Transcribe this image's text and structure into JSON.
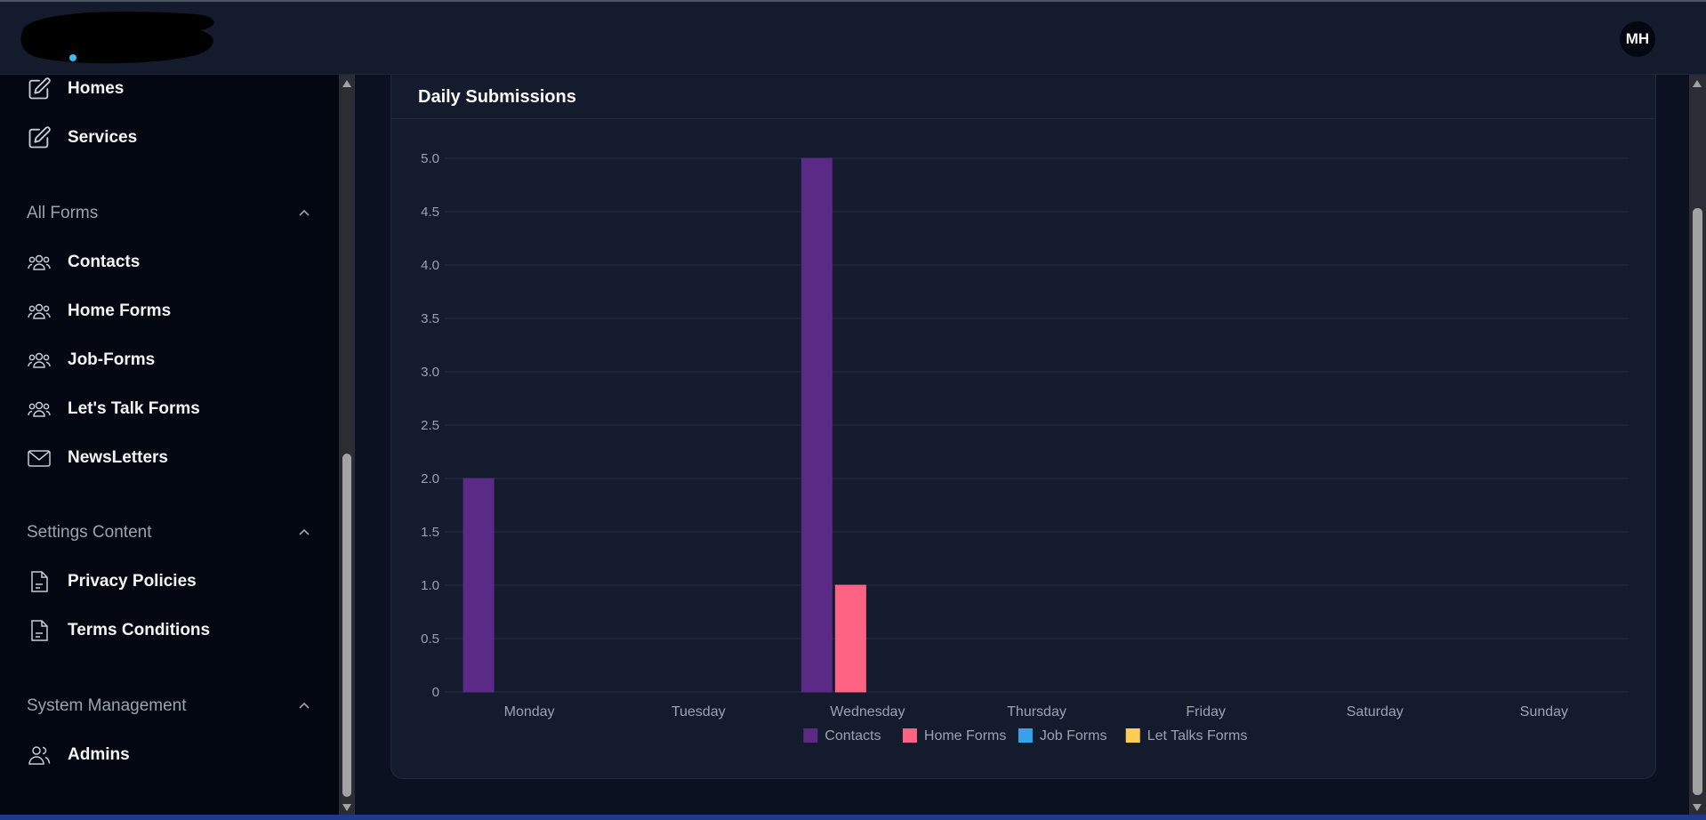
{
  "header": {
    "avatar_initials": "MH"
  },
  "sidebar": {
    "items_top": [
      {
        "label": "Homes",
        "icon": "edit-icon"
      },
      {
        "label": "Services",
        "icon": "edit-icon"
      }
    ],
    "sections": [
      {
        "title": "All Forms",
        "items": [
          {
            "label": "Contacts",
            "icon": "users-icon"
          },
          {
            "label": "Home Forms",
            "icon": "users-icon"
          },
          {
            "label": "Job-Forms",
            "icon": "users-icon"
          },
          {
            "label": "Let's Talk Forms",
            "icon": "users-icon"
          },
          {
            "label": "NewsLetters",
            "icon": "mail-icon"
          }
        ]
      },
      {
        "title": "Settings Content",
        "items": [
          {
            "label": "Privacy Policies",
            "icon": "file-icon"
          },
          {
            "label": "Terms Conditions",
            "icon": "file-icon"
          }
        ]
      },
      {
        "title": "System Management",
        "items": [
          {
            "label": "Admins",
            "icon": "users-icon"
          }
        ]
      }
    ]
  },
  "card": {
    "title": "Daily Submissions"
  },
  "chart_data": {
    "type": "bar",
    "title": "Daily Submissions",
    "categories": [
      "Monday",
      "Tuesday",
      "Wednesday",
      "Thursday",
      "Friday",
      "Saturday",
      "Sunday"
    ],
    "series": [
      {
        "name": "Contacts",
        "color": "#5b2a86",
        "values": [
          2,
          0,
          5,
          0,
          0,
          0,
          0
        ]
      },
      {
        "name": "Home Forms",
        "color": "#ff6384",
        "values": [
          0,
          0,
          1,
          0,
          0,
          0,
          0
        ]
      },
      {
        "name": "Job Forms",
        "color": "#36a2eb",
        "values": [
          0,
          0,
          0,
          0,
          0,
          0,
          0
        ]
      },
      {
        "name": "Let Talks Forms",
        "color": "#ffcd56",
        "values": [
          0,
          0,
          0,
          0,
          0,
          0,
          0
        ]
      }
    ],
    "ylim": [
      0,
      5
    ],
    "yticks": [
      "0",
      "0.5",
      "1.0",
      "1.5",
      "2.0",
      "2.5",
      "3.0",
      "3.5",
      "4.0",
      "4.5",
      "5.0"
    ],
    "grid": true,
    "legend": "bottom"
  }
}
